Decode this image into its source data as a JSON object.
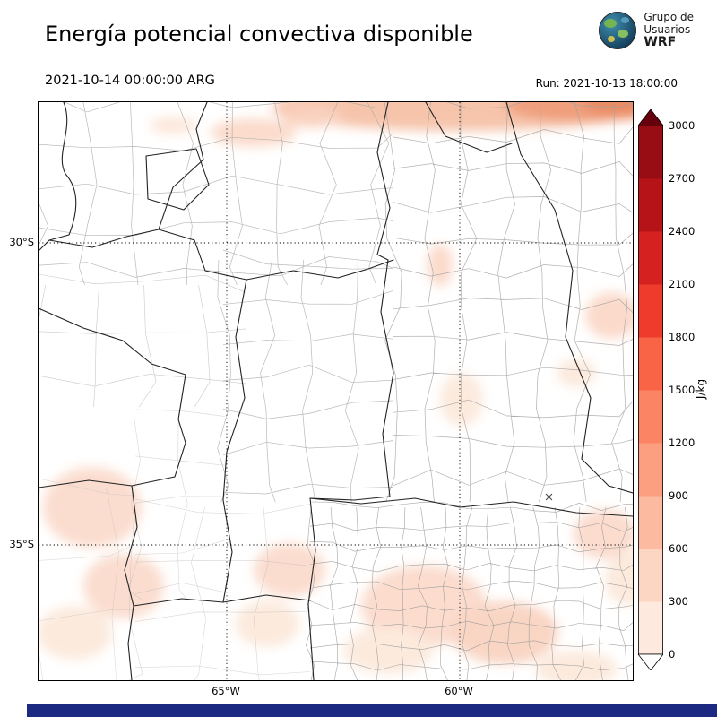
{
  "header": {
    "title": "Energía potencial convectiva disponible",
    "valid_time": "2021-10-14 00:00:00 ARG",
    "run_label": "Run: 2021-10-13 18:00:00",
    "logo": {
      "line1": "Grupo de",
      "line2": "Usuarios",
      "line3": "WRF"
    }
  },
  "map": {
    "lat_labels": [
      "30°S",
      "35°S"
    ],
    "lon_labels": [
      "65°W",
      "60°W"
    ]
  },
  "colorbar": {
    "units": "J/kg",
    "min": 0,
    "max": 3000,
    "step": 300,
    "ticks": [
      0,
      300,
      600,
      900,
      1200,
      1500,
      1800,
      2100,
      2400,
      2700,
      3000
    ],
    "segment_colors": [
      "#fee9df",
      "#fdd5c3",
      "#fcbba1",
      "#fc9f81",
      "#fb8465",
      "#f96346",
      "#ef3b2c",
      "#d52221",
      "#b61319",
      "#980c13"
    ],
    "over_color": "#67000d",
    "under_color": "#ffffff"
  },
  "footer": {
    "bar_color": "#1b2a80"
  }
}
